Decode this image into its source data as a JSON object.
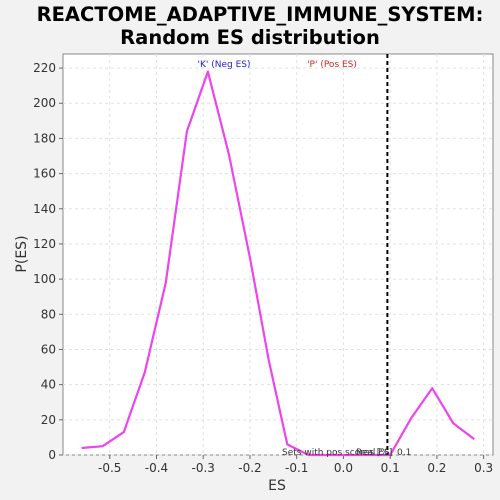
{
  "chart_data": {
    "type": "line",
    "title_line1": "REACTOME_ADAPTIVE_IMMUNE_SYSTEM:",
    "title_line2": "Random ES distribution",
    "xlabel": "ES",
    "ylabel": "P(ES)",
    "xlim": [
      -0.6,
      0.32
    ],
    "ylim": [
      0,
      228
    ],
    "x_ticks": [
      -0.5,
      -0.4,
      -0.3,
      -0.2,
      -0.1,
      0.0,
      0.1,
      0.2,
      0.3
    ],
    "x_tick_labels": [
      "-0.5",
      "-0.4",
      "-0.3",
      "-0.2",
      "-0.1",
      "0.0",
      "0.1",
      "0.2",
      "0.3"
    ],
    "y_ticks": [
      0,
      20,
      40,
      60,
      80,
      100,
      120,
      140,
      160,
      180,
      200,
      220
    ],
    "y_tick_labels": [
      "0",
      "20",
      "40",
      "60",
      "80",
      "100",
      "120",
      "140",
      "160",
      "180",
      "200",
      "220"
    ],
    "grid": true,
    "series": [
      {
        "color": "#ee44ee",
        "x": [
          -0.56,
          -0.515,
          -0.47,
          -0.425,
          -0.38,
          -0.335,
          -0.29,
          -0.245,
          -0.2,
          -0.16,
          -0.12,
          -0.075,
          -0.03,
          0.01,
          0.055,
          0.1,
          0.145,
          0.19,
          0.235,
          0.28
        ],
        "y": [
          4,
          5,
          13,
          47,
          98,
          184,
          218,
          171,
          112,
          54,
          6,
          0,
          0,
          0,
          0,
          0,
          21,
          38,
          18,
          9
        ]
      }
    ],
    "vline": {
      "x": 0.094,
      "color": "#000000",
      "style": "dashed"
    },
    "annotations": {
      "neg_label": "'K' (Neg ES)",
      "neg_color": "#2222cc",
      "pos_label": "'P' (Pos ES)",
      "pos_color": "#dd2222",
      "bottom_text_1": "Sets with pos scores [%]",
      "bottom_text_2": "Real ES",
      "bottom_text_3": "0.1"
    }
  }
}
